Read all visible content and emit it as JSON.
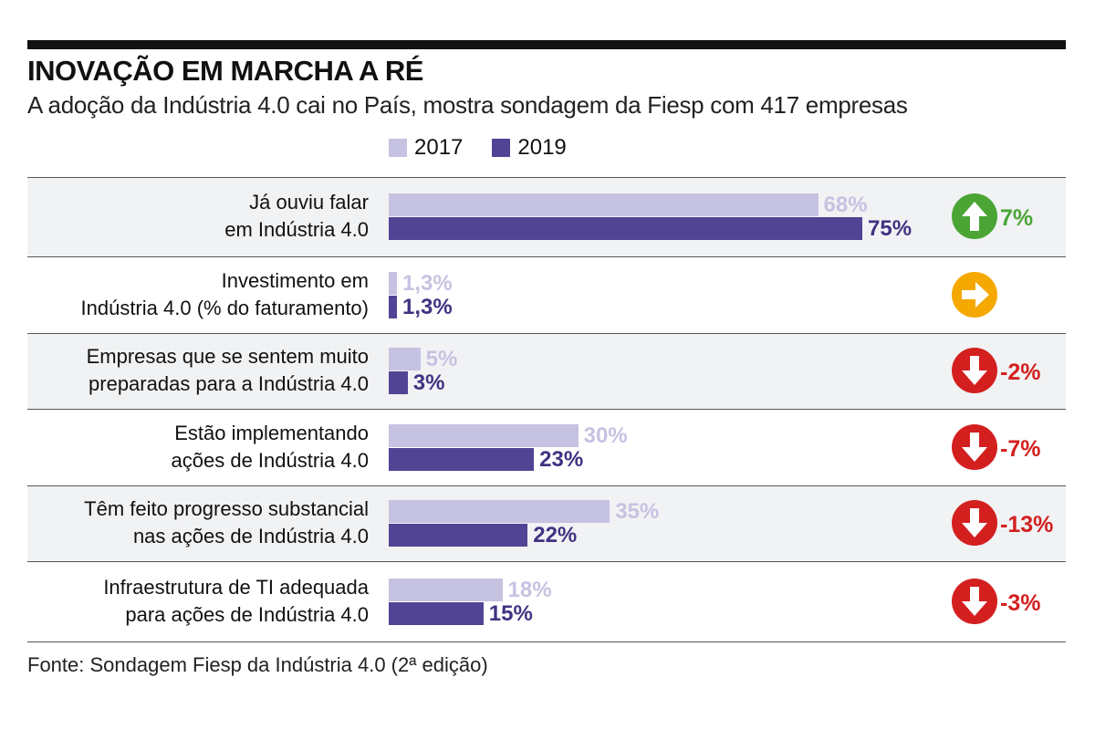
{
  "header": {
    "title": "INOVAÇÃO EM MARCHA A RÉ",
    "subtitle": "A adoção da Indústria 4.0 cai no País, mostra sondagem da Fiesp com 417 empresas"
  },
  "legend": [
    {
      "label": "2017",
      "color": "#c6c2e1"
    },
    {
      "label": "2019",
      "color": "#524494"
    }
  ],
  "source": "Fonte: Sondagem Fiesp da Indústria 4.0 (2ª edição)",
  "colors": {
    "up": "#4aa535",
    "neutral": "#f5a800",
    "down": "#d3201f",
    "bar2017": "#c6c2e1",
    "bar2019": "#524494",
    "label2017": "#c6c2e1",
    "label2019": "#3f3382"
  },
  "chart_data": {
    "type": "bar",
    "orientation": "horizontal",
    "title": "INOVAÇÃO EM MARCHA A RÉ",
    "subtitle": "A adoção da Indústria 4.0 cai no País, mostra sondagem da Fiesp com 417 empresas",
    "xlabel": "",
    "ylabel": "",
    "xlim": [
      0,
      100
    ],
    "grid": false,
    "legend_position": "top",
    "categories": [
      [
        "Já ouviu falar",
        "em Indústria 4.0"
      ],
      [
        "Investimento em",
        "Indústria 4.0 (% do faturamento)"
      ],
      [
        "Empresas que se sentem muito",
        "preparadas para a Indústria 4.0"
      ],
      [
        "Estão implementando",
        "ações de Indústria 4.0"
      ],
      [
        "Têm feito progresso substancial",
        "nas ações de Indústria 4.0"
      ],
      [
        "Infraestrutura de TI adequada",
        "para ações de Indústria 4.0"
      ]
    ],
    "series": [
      {
        "name": "2017",
        "values": [
          68,
          1.3,
          5,
          30,
          35,
          18
        ],
        "labels": [
          "68%",
          "1,3%",
          "5%",
          "30%",
          "35%",
          "18%"
        ]
      },
      {
        "name": "2019",
        "values": [
          75,
          1.3,
          3,
          23,
          22,
          15
        ],
        "labels": [
          "75%",
          "1,3%",
          "3%",
          "23%",
          "22%",
          "15%"
        ]
      }
    ],
    "changes": [
      {
        "direction": "up",
        "label": "7%"
      },
      {
        "direction": "neutral",
        "label": ""
      },
      {
        "direction": "down",
        "label": "-2%"
      },
      {
        "direction": "down",
        "label": "-7%"
      },
      {
        "direction": "down",
        "label": "-13%"
      },
      {
        "direction": "down",
        "label": "-3%"
      }
    ]
  }
}
